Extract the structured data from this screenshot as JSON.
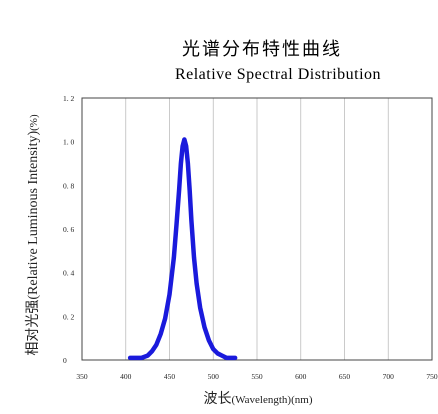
{
  "chart_data": {
    "type": "line",
    "title": "光谱分布特性曲线",
    "subtitle": "Relative Spectral Distribution",
    "ylabel_cn": "相对光强",
    "ylabel_en": "(Relative Luminous Intensity)",
    "ylabel_unit": "(%)",
    "xlabel_cn": "波长",
    "xlabel_en": "(Wavelength)",
    "xlabel_unit": "(nm)",
    "xlim": [
      350,
      750
    ],
    "ylim": [
      0,
      1.2
    ],
    "xticks": [
      "350",
      "400",
      "450",
      "500",
      "550",
      "600",
      "650",
      "700",
      "750"
    ],
    "yticks": [
      "0",
      "0. 2",
      "0. 4",
      "0. 6",
      "0. 8",
      "1. 0",
      "1. 2"
    ],
    "grid": "vertical",
    "line_color": "#1a1adc",
    "series": [
      {
        "x": [
          405,
          418,
          425,
          430,
          435,
          440,
          445,
          450,
          455,
          458,
          461,
          463,
          465,
          467,
          469,
          471,
          473,
          475,
          478,
          481,
          485,
          490,
          495,
          500,
          505,
          510,
          515,
          520,
          525
        ],
        "y": [
          0.01,
          0.01,
          0.02,
          0.04,
          0.07,
          0.12,
          0.19,
          0.3,
          0.47,
          0.62,
          0.78,
          0.9,
          0.98,
          1.01,
          0.98,
          0.9,
          0.78,
          0.64,
          0.47,
          0.35,
          0.24,
          0.15,
          0.09,
          0.05,
          0.03,
          0.02,
          0.01,
          0.01,
          0.01
        ]
      }
    ]
  }
}
